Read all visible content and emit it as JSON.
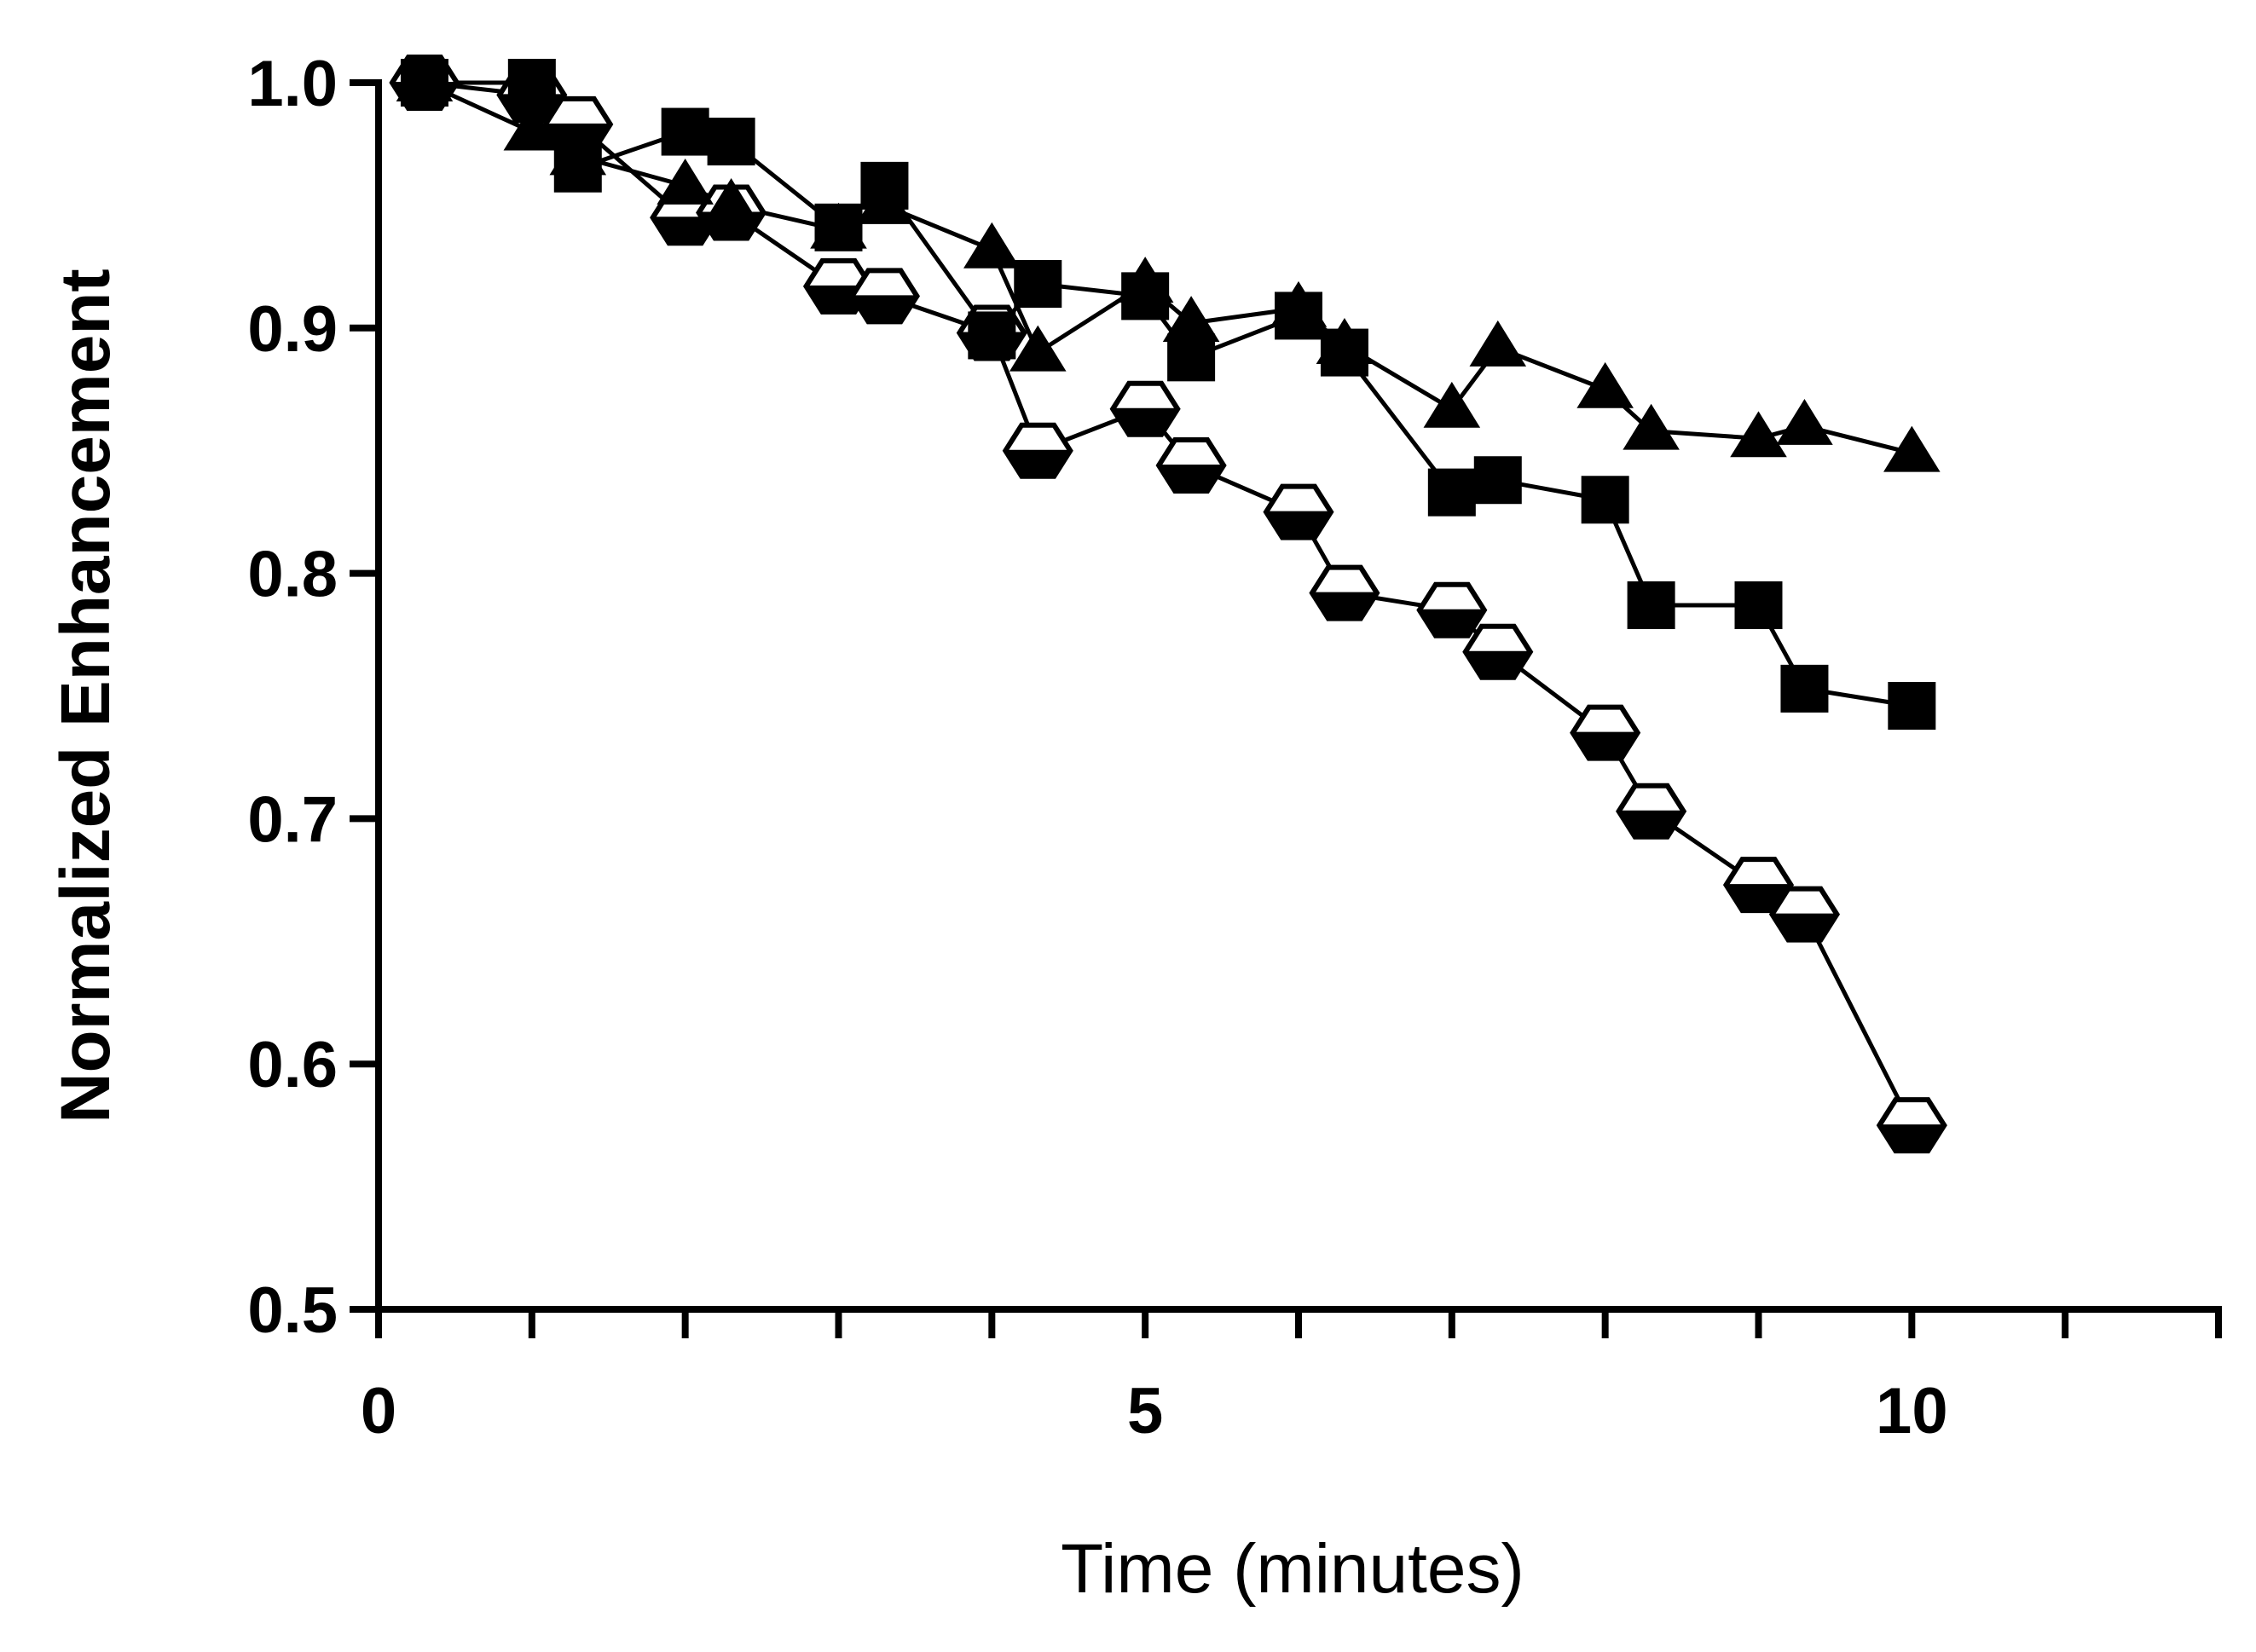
{
  "chart_data": {
    "type": "line",
    "title": "",
    "xlabel": "Time (minutes)",
    "ylabel": "Normalized Enhancement",
    "xlim": [
      0,
      12
    ],
    "ylim": [
      0.5,
      1.0
    ],
    "x_ticks": [
      0,
      5,
      10
    ],
    "x_minor_ticks": [
      1,
      2,
      3,
      4,
      6,
      7,
      8,
      9,
      11,
      12
    ],
    "y_ticks": [
      0.5,
      0.6,
      0.7,
      0.8,
      0.9,
      1.0
    ],
    "y_tick_labels": [
      "0.5",
      "0.6",
      "0.7",
      "0.8",
      "0.9",
      "1.0"
    ],
    "x_tick_labels": [
      "0",
      "5",
      "10"
    ],
    "grid": false,
    "series": [
      {
        "name": "triangles",
        "marker": "triangle",
        "color": "#000000",
        "x": [
          0.3,
          1.0,
          1.3,
          2.0,
          2.3,
          3.0,
          3.3,
          4.0,
          4.3,
          5.0,
          5.3,
          6.0,
          6.3,
          7.0,
          7.3,
          8.0,
          8.3,
          9.0,
          9.3,
          10.0
        ],
        "y": [
          1.0,
          0.98,
          0.97,
          0.958,
          0.95,
          0.94,
          0.95,
          0.932,
          0.89,
          0.918,
          0.902,
          0.908,
          0.893,
          0.867,
          0.892,
          0.875,
          0.858,
          0.855,
          0.86,
          0.849
        ]
      },
      {
        "name": "squares",
        "marker": "square",
        "color": "#000000",
        "x": [
          0.3,
          1.0,
          1.3,
          2.0,
          2.3,
          3.0,
          3.3,
          4.0,
          4.3,
          5.0,
          5.3,
          6.0,
          6.3,
          7.0,
          7.3,
          8.0,
          8.3,
          9.0,
          9.3,
          10.0
        ],
        "y": [
          1.0,
          1.0,
          0.965,
          0.98,
          0.976,
          0.941,
          0.958,
          0.897,
          0.918,
          0.913,
          0.888,
          0.905,
          0.89,
          0.833,
          0.838,
          0.83,
          0.787,
          0.787,
          0.753,
          0.746
        ]
      },
      {
        "name": "hexagons",
        "marker": "hexagon",
        "color": "#000000",
        "x": [
          0.3,
          1.0,
          1.3,
          2.0,
          2.3,
          3.0,
          3.3,
          4.0,
          4.3,
          5.0,
          5.3,
          6.0,
          6.3,
          7.0,
          7.3,
          8.0,
          8.3,
          9.0,
          9.3,
          10.0
        ],
        "y": [
          1.0,
          0.995,
          0.983,
          0.945,
          0.947,
          0.917,
          0.913,
          0.898,
          0.85,
          0.867,
          0.844,
          0.825,
          0.792,
          0.785,
          0.768,
          0.735,
          0.703,
          0.673,
          0.661,
          0.575
        ]
      }
    ]
  }
}
